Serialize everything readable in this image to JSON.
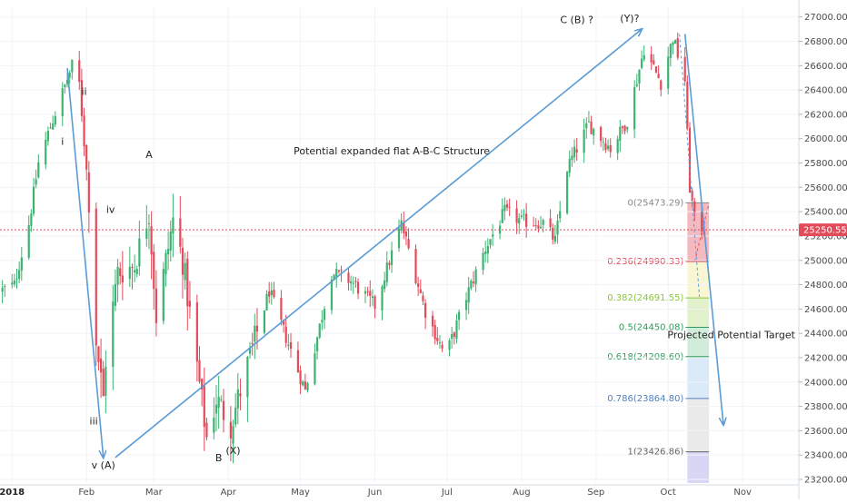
{
  "chart_data": {
    "type": "candlestick",
    "price_tag": {
      "text": "25250.55",
      "value": 25250.55,
      "color": "#e34a5a"
    },
    "colors": {
      "up": "#3cb371",
      "down": "#e34a5a",
      "arrow": "#5b9bd5"
    },
    "y_axis": {
      "range": [
        23170,
        27080
      ],
      "ticks": [
        27000,
        26800,
        26600,
        26400,
        26200,
        26000,
        25800,
        25600,
        25400,
        25200,
        25000,
        24800,
        24600,
        24400,
        24200,
        24000,
        23800,
        23600,
        23400,
        23200
      ],
      "tick_labels": [
        "27000.00",
        "26800.00",
        "26600.00",
        "26400.00",
        "26200.00",
        "26000.00",
        "25800.00",
        "25600.00",
        "25400.00",
        "25200.00",
        "25000.00",
        "24800.00",
        "24600.00",
        "24400.00",
        "24200.00",
        "24000.00",
        "23800.00",
        "23600.00",
        "23400.00",
        "23200.00"
      ]
    },
    "x_axis": {
      "range": [
        "2017-12-27",
        "2018-11-24"
      ],
      "ticks": [
        {
          "date": "2018-01-01",
          "label": "2018",
          "bold": true
        },
        {
          "date": "2018-02-01",
          "label": "Feb"
        },
        {
          "date": "2018-03-01",
          "label": "Mar"
        },
        {
          "date": "2018-04-01",
          "label": "Apr"
        },
        {
          "date": "2018-05-01",
          "label": "May"
        },
        {
          "date": "2018-06-01",
          "label": "Jun"
        },
        {
          "date": "2018-07-01",
          "label": "Jul"
        },
        {
          "date": "2018-08-01",
          "label": "Aug"
        },
        {
          "date": "2018-09-01",
          "label": "Sep"
        },
        {
          "date": "2018-10-01",
          "label": "Oct"
        },
        {
          "date": "2018-11-01",
          "label": "Nov"
        }
      ]
    },
    "anchors": [
      [
        "2017-12-27",
        24750
      ],
      [
        "2018-01-02",
        24800
      ],
      [
        "2018-01-08",
        25300
      ],
      [
        "2018-01-12",
        25800
      ],
      [
        "2018-01-17",
        26100
      ],
      [
        "2018-01-26",
        26600
      ],
      [
        "2018-01-29",
        26450
      ],
      [
        "2018-02-02",
        25500
      ],
      [
        "2018-02-05",
        24350
      ],
      [
        "2018-02-08",
        23860
      ],
      [
        "2018-02-09",
        24190
      ],
      [
        "2018-02-14",
        24900
      ],
      [
        "2018-02-21",
        24960
      ],
      [
        "2018-02-27",
        25410
      ],
      [
        "2018-03-02",
        24540
      ],
      [
        "2018-03-09",
        25330
      ],
      [
        "2018-03-13",
        25000
      ],
      [
        "2018-03-23",
        23540
      ],
      [
        "2018-03-27",
        23860
      ],
      [
        "2018-04-02",
        23650
      ],
      [
        "2018-04-06",
        23930
      ],
      [
        "2018-04-18",
        24750
      ],
      [
        "2018-05-03",
        23930
      ],
      [
        "2018-05-14",
        24900
      ],
      [
        "2018-05-22",
        24830
      ],
      [
        "2018-06-01",
        24630
      ],
      [
        "2018-06-12",
        25300
      ],
      [
        "2018-06-15",
        25090
      ],
      [
        "2018-06-22",
        24580
      ],
      [
        "2018-06-29",
        24270
      ],
      [
        "2018-07-02",
        24300
      ],
      [
        "2018-07-09",
        24700
      ],
      [
        "2018-07-17",
        25100
      ],
      [
        "2018-07-25",
        25400
      ],
      [
        "2018-08-01",
        25320
      ],
      [
        "2018-08-10",
        25310
      ],
      [
        "2018-08-15",
        25160
      ],
      [
        "2018-08-20",
        25760
      ],
      [
        "2018-08-29",
        26120
      ],
      [
        "2018-09-07",
        25920
      ],
      [
        "2018-09-14",
        26150
      ],
      [
        "2018-09-21",
        26740
      ],
      [
        "2018-09-28",
        26460
      ],
      [
        "2018-10-03",
        26830
      ],
      [
        "2018-10-08",
        26480
      ],
      [
        "2018-10-10",
        25600
      ],
      [
        "2018-10-12",
        25340
      ],
      [
        "2018-10-16",
        25250
      ]
    ],
    "labels": [
      {
        "text": "i",
        "date": "2018-01-22",
        "value": 25950
      },
      {
        "text": "ii",
        "date": "2018-01-31",
        "value": 26360
      },
      {
        "text": "iii",
        "date": "2018-02-04",
        "value": 23650
      },
      {
        "text": "iv",
        "date": "2018-02-11",
        "value": 25390
      },
      {
        "text": "v (A)",
        "date": "2018-02-08",
        "value": 23290
      },
      {
        "text": "A",
        "date": "2018-02-27",
        "value": 25840
      },
      {
        "text": "B",
        "date": "2018-03-28",
        "value": 23350
      },
      {
        "text": "(X)",
        "date": "2018-04-03",
        "value": 23410
      },
      {
        "text": "C (B) ?",
        "date": "2018-08-24",
        "value": 26950
      },
      {
        "text": "(Y)?",
        "date": "2018-09-15",
        "value": 26960
      }
    ],
    "annotations": {
      "structure": "Potential expanded flat A-B-C Structure",
      "target": "Projected Potential Target"
    },
    "arrows": [
      {
        "from": [
          "2018-01-24",
          26580
        ],
        "to": [
          "2018-02-08",
          23380
        ]
      },
      {
        "from": [
          "2018-02-13",
          23380
        ],
        "to": [
          "2018-09-20",
          26900
        ]
      },
      {
        "from": [
          "2018-10-08",
          26860
        ],
        "to": [
          "2018-10-24",
          23650
        ]
      }
    ],
    "fibonacci": {
      "date_start": "2018-10-09",
      "date_end": "2018-10-18",
      "levels": [
        {
          "ratio": "0",
          "value": 25473.29,
          "label": "0(25473.29)",
          "color": "#888888",
          "fill": "#f2a3ab"
        },
        {
          "ratio": "0.236",
          "value": 24990.33,
          "label": "0.236(24990.33)",
          "color": "#e34a5a",
          "fill": "#f7f3c6"
        },
        {
          "ratio": "0.382",
          "value": 24691.55,
          "label": "0.382(24691.55)",
          "color": "#8cc63f",
          "fill": "#d5ecbb"
        },
        {
          "ratio": "0.5",
          "value": 24450.08,
          "label": "0.5(24450.08)",
          "color": "#2e9e5b",
          "fill": "#c2e6cd"
        },
        {
          "ratio": "0.618",
          "value": 24208.6,
          "label": "0.618(24208.60)",
          "color": "#2e9e5b",
          "fill": "#cfe3f5"
        },
        {
          "ratio": "0.786",
          "value": 23864.8,
          "label": "0.786(23864.80)",
          "color": "#4f81bd",
          "fill": "#e3e3e3"
        },
        {
          "ratio": "1",
          "value": 23426.86,
          "label": "1(23426.86)",
          "color": "#666666",
          "fill": "#c9c9f2"
        }
      ]
    }
  }
}
